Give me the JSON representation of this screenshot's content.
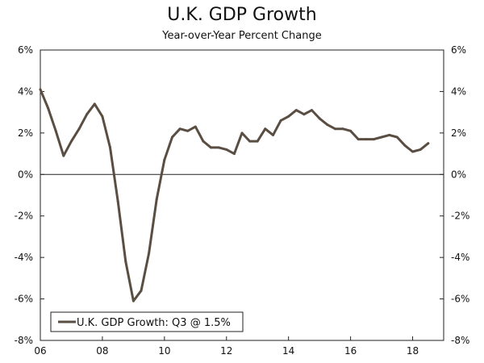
{
  "chart_data": {
    "type": "line",
    "title": "U.K. GDP Growth",
    "subtitle": "Year-over-Year Percent Change",
    "xlabel": "",
    "ylabel": "",
    "ylim": [
      -8,
      6
    ],
    "yticks": [
      6,
      4,
      2,
      0,
      -2,
      -4,
      -6,
      -8
    ],
    "ytick_labels": [
      "6%",
      "4%",
      "2%",
      "0%",
      "-2%",
      "-4%",
      "-6%",
      "-8%"
    ],
    "xlim": [
      2006.0,
      2019.0
    ],
    "xticks": [
      2006,
      2008,
      2010,
      2012,
      2014,
      2016,
      2018
    ],
    "xtick_labels": [
      "06",
      "08",
      "10",
      "12",
      "14",
      "16",
      "18"
    ],
    "legend": "U.K. GDP Growth: Q3 @ 1.5%",
    "legend_position": "bottom-left",
    "series": [
      {
        "name": "U.K. GDP Growth",
        "color": "#5a4e43",
        "x": [
          2006.0,
          2006.25,
          2006.5,
          2006.75,
          2007.0,
          2007.25,
          2007.5,
          2007.75,
          2008.0,
          2008.25,
          2008.5,
          2008.75,
          2009.0,
          2009.25,
          2009.5,
          2009.75,
          2010.0,
          2010.25,
          2010.5,
          2010.75,
          2011.0,
          2011.25,
          2011.5,
          2011.75,
          2012.0,
          2012.25,
          2012.5,
          2012.75,
          2013.0,
          2013.25,
          2013.5,
          2013.75,
          2014.0,
          2014.25,
          2014.5,
          2014.75,
          2015.0,
          2015.25,
          2015.5,
          2015.75,
          2016.0,
          2016.25,
          2016.5,
          2016.75,
          2017.0,
          2017.25,
          2017.5,
          2017.75,
          2018.0,
          2018.25,
          2018.5
        ],
        "values": [
          4.1,
          3.2,
          2.1,
          0.9,
          1.6,
          2.2,
          2.9,
          3.4,
          2.8,
          1.3,
          -1.3,
          -4.2,
          -6.1,
          -5.6,
          -3.8,
          -1.2,
          0.7,
          1.8,
          2.2,
          2.1,
          2.3,
          1.6,
          1.3,
          1.3,
          1.2,
          1.0,
          2.0,
          1.6,
          1.6,
          2.2,
          1.9,
          2.6,
          2.8,
          3.1,
          2.9,
          3.1,
          2.7,
          2.4,
          2.2,
          2.2,
          2.1,
          1.7,
          1.7,
          1.7,
          1.8,
          1.9,
          1.8,
          1.4,
          1.1,
          1.2,
          1.5
        ]
      }
    ]
  }
}
